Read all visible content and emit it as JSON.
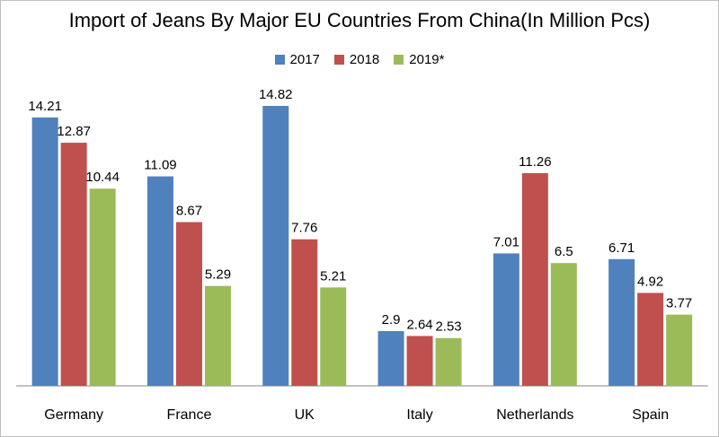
{
  "chart_data": {
    "type": "bar",
    "title": "Import of Jeans By Major EU Countries From China(In Million Pcs)",
    "categories": [
      "Germany",
      "France",
      "UK",
      "Italy",
      "Netherlands",
      "Spain"
    ],
    "series": [
      {
        "name": "2017",
        "color": "#4f81bd",
        "values": [
          14.21,
          11.09,
          14.82,
          2.9,
          7.01,
          6.71
        ],
        "labels": [
          "14.21",
          "11.09",
          "14.82",
          "2.9",
          "7.01",
          "6.71"
        ]
      },
      {
        "name": "2018",
        "color": "#c0504d",
        "values": [
          12.87,
          8.67,
          7.76,
          2.64,
          11.26,
          4.92
        ],
        "labels": [
          "12.87",
          "8.67",
          "7.76",
          "2.64",
          "11.26",
          "4.92"
        ]
      },
      {
        "name": "2019*",
        "color": "#9bbb59",
        "values": [
          10.44,
          5.29,
          5.21,
          2.53,
          6.5,
          3.77
        ],
        "labels": [
          "10.44",
          "5.29",
          "5.21",
          "2.53",
          "6.5",
          "3.77"
        ]
      }
    ],
    "ylim": [
      0,
      16
    ],
    "grid": false,
    "legend_position": "top"
  }
}
